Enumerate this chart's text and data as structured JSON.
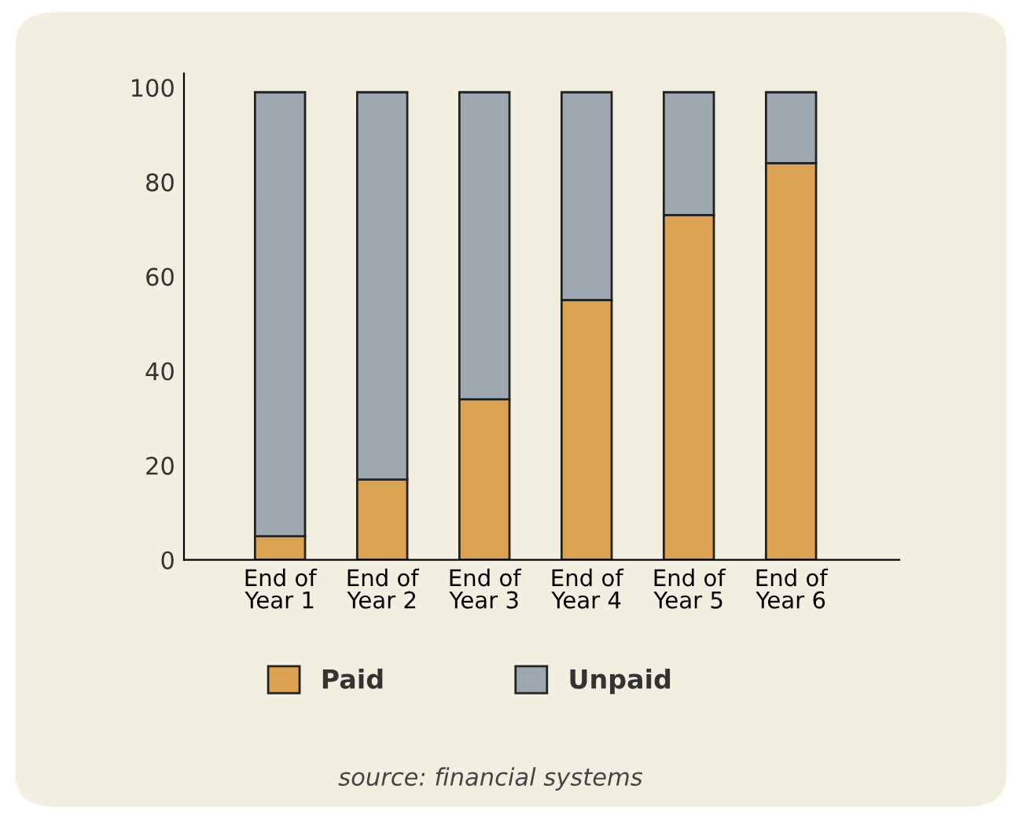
{
  "chart_data": {
    "type": "bar",
    "stacked": true,
    "categories": [
      "End of\nYear 1",
      "End of\nYear 2",
      "End of\nYear 3",
      "End of\nYear 4",
      "End of\nYear 5",
      "End of\nYear 6"
    ],
    "series": [
      {
        "name": "Paid",
        "color": "#dba253",
        "values": [
          5,
          17,
          34,
          55,
          73,
          84
        ]
      },
      {
        "name": "Unpaid",
        "color": "#9ea8b0",
        "values": [
          94,
          82,
          65,
          44,
          26,
          15
        ]
      }
    ],
    "ylim": [
      0,
      103
    ],
    "yticks": [
      0,
      20,
      40,
      60,
      80,
      100
    ],
    "grid": false,
    "legend": "bottom",
    "annotations": [
      "source: financial systems"
    ]
  }
}
